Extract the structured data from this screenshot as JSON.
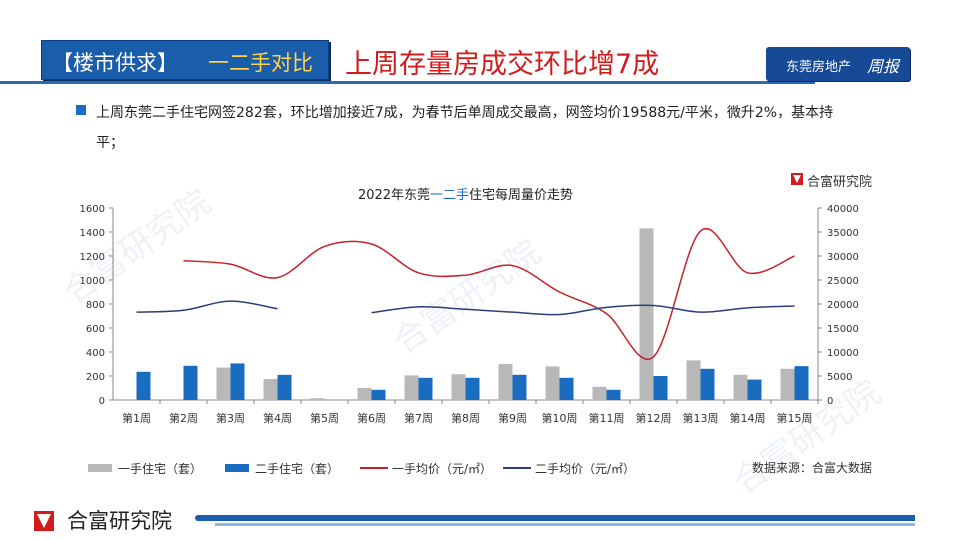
{
  "header": {
    "tag_prefix": "【楼市供求】",
    "tag_highlight": "一二手对比",
    "headline": "上周存量房成交环比增7成",
    "brand_text": "东莞房地产",
    "brand_script": "周报"
  },
  "summary": "上周东莞二手住宅网签282套，环比增加接近7成，为春节后单周成交最高，网签均价19588元/平米，微升2%，基本持平；",
  "source_tag": "合富研究院",
  "watermark": "合富研究院",
  "legend": {
    "new_units": "一手住宅（套）",
    "resale_units": "二手住宅（套）",
    "new_price": "一手均价（元/㎡）",
    "resale_price": "二手均价（元/㎡）"
  },
  "data_source": "数据来源：合富大数据",
  "footer": {
    "logo_text": "合富研究院"
  },
  "colors": {
    "accent_blue": "#1a5dab",
    "new_units_bar": "#b8b8b8",
    "resale_units_bar": "#1a6cc0",
    "new_price_line": "#c8202a",
    "resale_price_line": "#2a3f7a",
    "headline_red": "#d21b1b"
  },
  "chart_data": {
    "type": "bar",
    "title_parts": [
      "2022年东莞",
      "一二手",
      "住宅每周量价走势"
    ],
    "categories": [
      "第1周",
      "第2周",
      "第3周",
      "第4周",
      "第5周",
      "第6周",
      "第7周",
      "第8周",
      "第9周",
      "第10周",
      "第11周",
      "第12周",
      "第13周",
      "第14周",
      "第15周"
    ],
    "series": [
      {
        "name": "一手住宅（套）",
        "kind": "bar",
        "axis": "left",
        "values": [
          null,
          null,
          270,
          175,
          15,
          100,
          205,
          215,
          300,
          280,
          110,
          1430,
          330,
          210,
          260
        ]
      },
      {
        "name": "二手住宅（套）",
        "kind": "bar",
        "axis": "left",
        "values": [
          235,
          285,
          305,
          210,
          null,
          85,
          185,
          185,
          210,
          185,
          85,
          200,
          260,
          170,
          282
        ]
      },
      {
        "name": "一手均价（元/㎡）",
        "kind": "line",
        "axis": "right",
        "values": [
          null,
          29000,
          28300,
          25500,
          32000,
          32500,
          26500,
          26000,
          28000,
          22500,
          18000,
          9000,
          35200,
          26500,
          30000
        ]
      },
      {
        "name": "二手均价（元/㎡）",
        "kind": "line",
        "axis": "right",
        "values": [
          18300,
          18700,
          20600,
          19000,
          null,
          18200,
          19400,
          18900,
          18300,
          17800,
          19300,
          19700,
          18300,
          19200,
          19588
        ]
      }
    ],
    "y_left": {
      "min": 0,
      "max": 1600,
      "ticks": [
        0,
        200,
        400,
        600,
        800,
        1000,
        1200,
        1400,
        1600
      ]
    },
    "y_right": {
      "min": 0,
      "max": 40000,
      "ticks": [
        0,
        5000,
        10000,
        15000,
        20000,
        25000,
        30000,
        35000,
        40000
      ]
    },
    "grid": false,
    "legend_position": "bottom"
  }
}
